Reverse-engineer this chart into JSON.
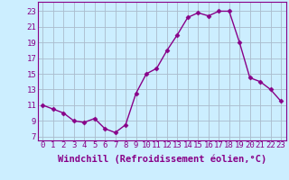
{
  "x": [
    0,
    1,
    2,
    3,
    4,
    5,
    6,
    7,
    8,
    9,
    10,
    11,
    12,
    13,
    14,
    15,
    16,
    17,
    18,
    19,
    20,
    21,
    22,
    23
  ],
  "y": [
    11.0,
    10.5,
    10.0,
    9.0,
    8.8,
    9.3,
    8.0,
    7.5,
    8.5,
    12.5,
    15.0,
    15.7,
    18.0,
    20.0,
    22.2,
    22.8,
    22.4,
    23.0,
    23.0,
    19.0,
    14.5,
    14.0,
    13.0,
    11.5
  ],
  "line_color": "#880088",
  "marker": "D",
  "markersize": 2.5,
  "linewidth": 1.0,
  "xlabel": "Windchill (Refroidissement éolien,°C)",
  "xlabel_fontsize": 7.5,
  "xtick_labels": [
    "0",
    "1",
    "2",
    "3",
    "4",
    "5",
    "6",
    "7",
    "8",
    "9",
    "10",
    "11",
    "12",
    "13",
    "14",
    "15",
    "16",
    "17",
    "18",
    "19",
    "20",
    "21",
    "22",
    "23"
  ],
  "yticks": [
    7,
    9,
    11,
    13,
    15,
    17,
    19,
    21,
    23
  ],
  "ylim": [
    6.5,
    24.2
  ],
  "xlim": [
    -0.5,
    23.5
  ],
  "bg_color": "#cceeff",
  "grid_color": "#aabbcc",
  "tick_fontsize": 6.5
}
